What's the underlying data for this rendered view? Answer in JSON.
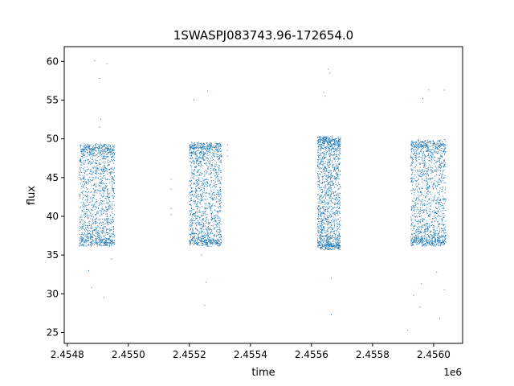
{
  "chart_data": {
    "type": "scatter",
    "title": "1SWASPJ083743.96-172654.0",
    "xlabel": "time",
    "ylabel": "flux",
    "x_offset_label": "1e6",
    "xlim": [
      2454790,
      2456095
    ],
    "ylim": [
      23.6,
      61.9
    ],
    "x_ticks": [
      2454800,
      2455000,
      2455200,
      2455400,
      2455600,
      2455800,
      2456000
    ],
    "x_tick_labels": [
      "2.4548",
      "2.4550",
      "2.4552",
      "2.4554",
      "2.4556",
      "2.4558",
      "2.4560"
    ],
    "y_ticks": [
      25,
      30,
      35,
      40,
      45,
      50,
      55,
      60
    ],
    "y_tick_labels": [
      "25",
      "30",
      "35",
      "40",
      "45",
      "50",
      "55",
      "60"
    ],
    "grid": false,
    "marker_color": "#1f77b4",
    "series": [
      {
        "segments": [
          {
            "x_range": [
              2454840,
              2454955
            ],
            "flux_range": [
              36.5,
              49.0
            ]
          },
          {
            "x_range": [
              2455200,
              2455305
            ],
            "flux_range": [
              36.5,
              49.2
            ]
          },
          {
            "x_range": [
              2455620,
              2455695
            ],
            "flux_range": [
              36.0,
              50.0
            ]
          },
          {
            "x_range": [
              2455925,
              2456040
            ],
            "flux_range": [
              36.5,
              49.5
            ]
          }
        ],
        "sparse_points": [
          [
            2455140,
            44.8
          ],
          [
            2455140,
            43.5
          ],
          [
            2455140,
            41.0
          ],
          [
            2455140,
            40.2
          ],
          [
            2455325,
            49.2
          ],
          [
            2455325,
            48.5
          ],
          [
            2455325,
            47.8
          ],
          [
            2454890,
            60.1
          ],
          [
            2454905,
            57.8
          ],
          [
            2454930,
            59.7
          ],
          [
            2454910,
            52.5
          ],
          [
            2454905,
            51.5
          ],
          [
            2454870,
            33.0
          ],
          [
            2454880,
            30.8
          ],
          [
            2454920,
            29.5
          ],
          [
            2454945,
            34.5
          ],
          [
            2455215,
            55.0
          ],
          [
            2455240,
            35.0
          ],
          [
            2455260,
            56.2
          ],
          [
            2455250,
            28.5
          ],
          [
            2455255,
            31.5
          ],
          [
            2455655,
            59.0
          ],
          [
            2455660,
            58.5
          ],
          [
            2455645,
            55.5
          ],
          [
            2455640,
            56.0
          ],
          [
            2455665,
            32.0
          ],
          [
            2455665,
            27.3
          ],
          [
            2455985,
            56.3
          ],
          [
            2455965,
            55.2
          ],
          [
            2456035,
            56.3
          ],
          [
            2455960,
            31.3
          ],
          [
            2455955,
            28.3
          ],
          [
            2455915,
            25.3
          ],
          [
            2455935,
            29.8
          ],
          [
            2456010,
            32.8
          ],
          [
            2456020,
            26.8
          ],
          [
            2456035,
            30.5
          ]
        ]
      }
    ]
  }
}
